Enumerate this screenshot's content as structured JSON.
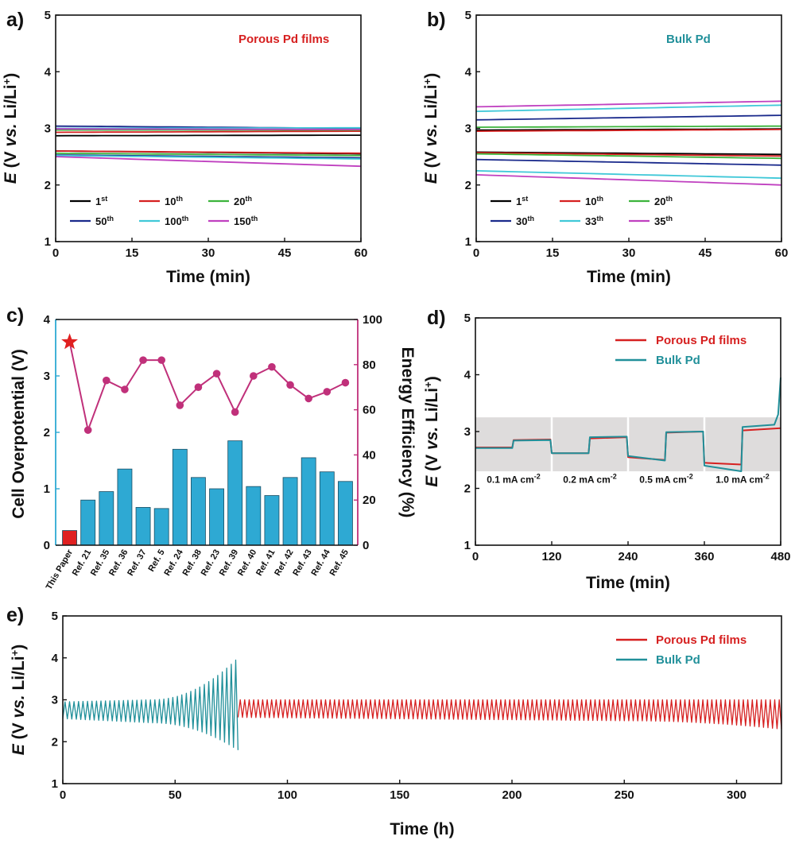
{
  "chart_data": [
    {
      "panel": "a)",
      "type": "line",
      "title": "Porous Pd films",
      "xlabel": "Time (min)",
      "ylabel": "E (V vs. Li/Li+)",
      "ylabel_parts": {
        "italic_var": "E",
        "open": " (V ",
        "vs": "vs.",
        "rest": " Li/Li",
        "sup": "+",
        "close": ")"
      },
      "xlim": [
        0,
        60
      ],
      "ylim": [
        1,
        5
      ],
      "xticks": [
        "0",
        "15",
        "30",
        "45",
        "60"
      ],
      "yticks": [
        "1",
        "2",
        "3",
        "4",
        "5"
      ],
      "legend": {
        "position": "lower-left"
      },
      "series": [
        {
          "name": "1",
          "suffix": "st",
          "color": "#000000",
          "charge": [
            2.87,
            2.88
          ],
          "discharge": [
            2.6,
            2.55
          ]
        },
        {
          "name": "10",
          "suffix": "th",
          "color": "#d62020",
          "charge": [
            2.93,
            2.95
          ],
          "discharge": [
            2.6,
            2.56
          ]
        },
        {
          "name": "20",
          "suffix": "th",
          "color": "#3cb43c",
          "charge": [
            2.97,
            2.97
          ],
          "discharge": [
            2.56,
            2.52
          ]
        },
        {
          "name": "50",
          "suffix": "th",
          "color": "#1a2a8c",
          "charge": [
            3.04,
            3.0
          ],
          "discharge": [
            2.53,
            2.48
          ]
        },
        {
          "name": "100",
          "suffix": "th",
          "color": "#40c8d8",
          "charge": [
            3.0,
            3.01
          ],
          "discharge": [
            2.52,
            2.46
          ]
        },
        {
          "name": "150",
          "suffix": "th",
          "color": "#c040c0",
          "charge": [
            2.99,
            2.98
          ],
          "discharge": [
            2.5,
            2.33
          ]
        }
      ]
    },
    {
      "panel": "b)",
      "type": "line",
      "title": "Bulk Pd",
      "xlabel": "Time (min)",
      "ylabel": "E (V vs. Li/Li+)",
      "ylabel_parts": {
        "italic_var": "E",
        "open": " (V ",
        "vs": "vs.",
        "rest": " Li/Li",
        "sup": "+",
        "close": ")"
      },
      "xlim": [
        0,
        60
      ],
      "ylim": [
        1,
        5
      ],
      "xticks": [
        "0",
        "15",
        "30",
        "45",
        "60"
      ],
      "yticks": [
        "1",
        "2",
        "3",
        "4",
        "5"
      ],
      "legend": {
        "position": "lower-left"
      },
      "series": [
        {
          "name": "1",
          "suffix": "st",
          "color": "#000000",
          "charge": [
            2.97,
            2.99
          ],
          "discharge": [
            2.58,
            2.54
          ]
        },
        {
          "name": "10",
          "suffix": "th",
          "color": "#d62020",
          "charge": [
            2.95,
            2.98
          ],
          "discharge": [
            2.57,
            2.51
          ]
        },
        {
          "name": "20",
          "suffix": "th",
          "color": "#3cb43c",
          "charge": [
            3.02,
            3.04
          ],
          "discharge": [
            2.55,
            2.47
          ]
        },
        {
          "name": "30",
          "suffix": "th",
          "color": "#1a2a8c",
          "charge": [
            3.15,
            3.23
          ],
          "discharge": [
            2.45,
            2.35
          ]
        },
        {
          "name": "33",
          "suffix": "th",
          "color": "#40c8d8",
          "charge": [
            3.3,
            3.41
          ],
          "discharge": [
            2.25,
            2.12
          ]
        },
        {
          "name": "35",
          "suffix": "th",
          "color": "#c040c0",
          "charge": [
            3.38,
            3.48
          ],
          "discharge": [
            2.18,
            2.0
          ]
        }
      ]
    },
    {
      "panel": "c)",
      "type": "bar",
      "categories": [
        "This Paper",
        "Ref. 21",
        "Ref. 35",
        "Ref. 36",
        "Ref. 37",
        "Ref. 5",
        "Ref. 24",
        "Ref. 38",
        "Ref. 23",
        "Ref. 39",
        "Ref. 40",
        "Ref. 41",
        "Ref. 42",
        "Ref. 43",
        "Ref. 44",
        "Ref. 45"
      ],
      "series": [
        {
          "name": "Cell Overpotential (V)",
          "axis": "left",
          "color": "#2ea9d3",
          "values": [
            0.26,
            0.8,
            0.95,
            1.35,
            0.67,
            0.65,
            1.7,
            1.2,
            1.0,
            1.85,
            1.04,
            0.88,
            1.2,
            1.55,
            1.3,
            1.13
          ]
        },
        {
          "name": "Energy Efficiency (%)",
          "axis": "right",
          "type": "line",
          "color": "#c0307a",
          "values": [
            90,
            51,
            73,
            69,
            82,
            82,
            62,
            70,
            76,
            59,
            75,
            79,
            71,
            65,
            68,
            72
          ]
        }
      ],
      "highlight_color": "#e02020",
      "ylabel_left": "Cell Overpotential (V)",
      "ylabel_right": "Energy Efficiency (%)",
      "ylim_left": [
        0,
        4
      ],
      "ylim_right": [
        0,
        100
      ],
      "yticks_left": [
        "0",
        "1",
        "2",
        "3",
        "4"
      ],
      "yticks_right": [
        "0",
        "20",
        "40",
        "60",
        "80",
        "100"
      ],
      "left_axis_color": "#2ea9d3",
      "right_axis_color": "#c0307a"
    },
    {
      "panel": "d)",
      "type": "line",
      "xlabel": "Time (min)",
      "ylabel": "E (V vs. Li/Li+)",
      "ylabel_parts": {
        "italic_var": "E",
        "open": " (V ",
        "vs": "vs.",
        "rest": " Li/Li",
        "sup": "+",
        "close": ")"
      },
      "xlim": [
        0,
        480
      ],
      "ylim": [
        1,
        5
      ],
      "xticks": [
        "0",
        "120",
        "240",
        "360",
        "480"
      ],
      "yticks": [
        "1",
        "2",
        "3",
        "4",
        "5"
      ],
      "legend": {
        "position": "top-right"
      },
      "shaded_region": {
        "ylim": [
          2.3,
          3.25
        ]
      },
      "current_densities": [
        {
          "value": "0.1 mA cm",
          "exp": "-2"
        },
        {
          "value": "0.2 mA cm",
          "exp": "-2"
        },
        {
          "value": "0.5 mA cm",
          "exp": "-2"
        },
        {
          "value": "1.0 mA cm",
          "exp": "-2"
        }
      ],
      "series": [
        {
          "name": "Porous Pd films",
          "color": "#d62020",
          "x": [
            0,
            58,
            60,
            118,
            120,
            178,
            180,
            238,
            240,
            298,
            300,
            358,
            360,
            418,
            420,
            480
          ],
          "y": [
            2.72,
            2.72,
            2.85,
            2.86,
            2.62,
            2.62,
            2.88,
            2.9,
            2.55,
            2.5,
            2.98,
            3.0,
            2.45,
            2.42,
            3.02,
            3.06
          ]
        },
        {
          "name": "Bulk Pd",
          "color": "#21909a",
          "x": [
            0,
            58,
            60,
            118,
            120,
            178,
            180,
            238,
            240,
            298,
            300,
            358,
            360,
            418,
            420,
            470,
            476,
            480
          ],
          "y": [
            2.71,
            2.71,
            2.84,
            2.85,
            2.62,
            2.62,
            2.9,
            2.91,
            2.57,
            2.49,
            2.99,
            3.0,
            2.4,
            2.3,
            3.08,
            3.12,
            3.3,
            3.95
          ]
        }
      ]
    },
    {
      "panel": "e)",
      "type": "line",
      "xlabel": "Time (h)",
      "ylabel": "E (V vs. Li/Li+)",
      "ylabel_parts": {
        "italic_var": "E",
        "open": " (V ",
        "vs": "vs.",
        "rest": " Li/Li",
        "sup": "+",
        "close": ")"
      },
      "xlim": [
        0,
        320
      ],
      "ylim": [
        1,
        5
      ],
      "xticks": [
        "0",
        "50",
        "100",
        "150",
        "200",
        "250",
        "300"
      ],
      "yticks": [
        "1",
        "2",
        "3",
        "4",
        "5"
      ],
      "legend": {
        "position": "top-right"
      },
      "series": [
        {
          "name": "Porous Pd films",
          "color": "#d62020",
          "t_range": [
            78,
            320
          ],
          "cycle_period_h": 2,
          "charge_envelope": [
            [
              78,
              3.0
            ],
            [
              320,
              3.0
            ]
          ],
          "discharge_envelope": [
            [
              78,
              2.58
            ],
            [
              250,
              2.5
            ],
            [
              320,
              2.3
            ]
          ]
        },
        {
          "name": "Bulk Pd",
          "color": "#21909a",
          "t_range": [
            0,
            78
          ],
          "cycle_period_h": 2,
          "charge_envelope": [
            [
              0,
              2.95
            ],
            [
              40,
              3.0
            ],
            [
              78,
              4.0
            ]
          ],
          "discharge_envelope": [
            [
              0,
              2.55
            ],
            [
              40,
              2.45
            ],
            [
              78,
              1.8
            ]
          ]
        }
      ]
    }
  ]
}
